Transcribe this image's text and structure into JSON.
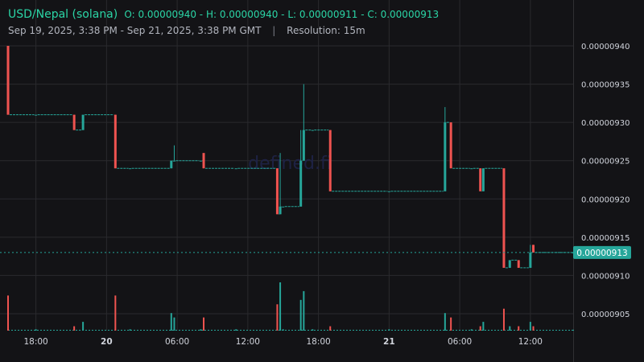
{
  "header": {
    "pair": "USD/Nepal (solana)",
    "ohlc": "O: 0.00000940 - H: 0.00000940 - L: 0.00000911 - C: 0.00000913",
    "range": "Sep 19, 2025, 3:38 PM - Sep 21, 2025, 3:38 PM GMT",
    "separator": "|",
    "resolution": "Resolution: 15m"
  },
  "watermark": "defined.fi",
  "colors": {
    "up": "#26a69a",
    "down": "#ef5350",
    "accent": "#2bd5a6",
    "grid": "#2a2a2e",
    "background": "#131316"
  },
  "chart_data": {
    "type": "candlestick",
    "interval": "15m",
    "ylim": [
      9.02e-06,
      9.42e-06
    ],
    "y_ticks": [
      {
        "value": 9.05e-06,
        "label": "0.00000905"
      },
      {
        "value": 9.1e-06,
        "label": "0.00000910"
      },
      {
        "value": 9.15e-06,
        "label": "0.00000915"
      },
      {
        "value": 9.2e-06,
        "label": "0.00000920"
      },
      {
        "value": 9.25e-06,
        "label": "0.00000925"
      },
      {
        "value": 9.3e-06,
        "label": "0.00000930"
      },
      {
        "value": 9.35e-06,
        "label": "0.00000935"
      },
      {
        "value": 9.4e-06,
        "label": "0.00000940"
      }
    ],
    "x_ticks": [
      {
        "time": "Sep 19 18:00",
        "label": "18:00",
        "bold": false
      },
      {
        "time": "Sep 20 00:00",
        "label": "20",
        "bold": true
      },
      {
        "time": "Sep 20 06:00",
        "label": "06:00",
        "bold": false
      },
      {
        "time": "Sep 20 12:00",
        "label": "12:00",
        "bold": false
      },
      {
        "time": "Sep 20 18:00",
        "label": "18:00",
        "bold": false
      },
      {
        "time": "Sep 21 00:00",
        "label": "21",
        "bold": true
      },
      {
        "time": "Sep 21 06:00",
        "label": "06:00",
        "bold": false
      },
      {
        "time": "Sep 21 12:00",
        "label": "12:00",
        "bold": false
      }
    ],
    "last_price": {
      "value": 9.13e-06,
      "label": "0.00000913"
    },
    "candles": [
      {
        "t": "Sep 19 15:38",
        "o": 9.4e-06,
        "h": 9.4e-06,
        "l": 9.31e-06,
        "c": 9.31e-06,
        "v": 8
      },
      {
        "t": "Sep 19 18:00",
        "o": 9.31e-06,
        "h": 9.31e-06,
        "l": 9.31e-06,
        "c": 9.31e-06,
        "v": 0.3
      },
      {
        "t": "Sep 19 21:15",
        "o": 9.31e-06,
        "h": 9.31e-06,
        "l": 9.29e-06,
        "c": 9.29e-06,
        "v": 1
      },
      {
        "t": "Sep 19 22:00",
        "o": 9.29e-06,
        "h": 9.31e-06,
        "l": 9.29e-06,
        "c": 9.31e-06,
        "v": 2
      },
      {
        "t": "Sep 20 00:45",
        "o": 9.31e-06,
        "h": 9.31e-06,
        "l": 9.24e-06,
        "c": 9.24e-06,
        "v": 8
      },
      {
        "t": "Sep 20 02:00",
        "o": 9.24e-06,
        "h": 9.24e-06,
        "l": 9.24e-06,
        "c": 9.24e-06,
        "v": 0.3
      },
      {
        "t": "Sep 20 05:30",
        "o": 9.24e-06,
        "h": 9.25e-06,
        "l": 9.24e-06,
        "c": 9.25e-06,
        "v": 4
      },
      {
        "t": "Sep 20 05:45",
        "o": 9.25e-06,
        "h": 9.27e-06,
        "l": 9.25e-06,
        "c": 9.25e-06,
        "v": 3
      },
      {
        "t": "Sep 20 08:00",
        "o": 9.25e-06,
        "h": 9.25e-06,
        "l": 9.25e-06,
        "c": 9.25e-06,
        "v": 0.3
      },
      {
        "t": "Sep 20 08:15",
        "o": 9.26e-06,
        "h": 9.26e-06,
        "l": 9.24e-06,
        "c": 9.24e-06,
        "v": 3
      },
      {
        "t": "Sep 20 11:00",
        "o": 9.24e-06,
        "h": 9.24e-06,
        "l": 9.24e-06,
        "c": 9.24e-06,
        "v": 0.3
      },
      {
        "t": "Sep 20 14:30",
        "o": 9.24e-06,
        "h": 9.24e-06,
        "l": 9.18e-06,
        "c": 9.18e-06,
        "v": 6
      },
      {
        "t": "Sep 20 14:45",
        "o": 9.18e-06,
        "h": 9.26e-06,
        "l": 9.18e-06,
        "c": 9.19e-06,
        "v": 11
      },
      {
        "t": "Sep 20 15:00",
        "o": 9.19e-06,
        "h": 9.19e-06,
        "l": 9.19e-06,
        "c": 9.19e-06,
        "v": 0.3
      },
      {
        "t": "Sep 20 16:30",
        "o": 9.19e-06,
        "h": 9.29e-06,
        "l": 9.19e-06,
        "c": 9.25e-06,
        "v": 7
      },
      {
        "t": "Sep 20 16:45",
        "o": 9.25e-06,
        "h": 9.35e-06,
        "l": 9.25e-06,
        "c": 9.29e-06,
        "v": 9
      },
      {
        "t": "Sep 20 17:30",
        "o": 9.29e-06,
        "h": 9.29e-06,
        "l": 9.29e-06,
        "c": 9.29e-06,
        "v": 0.3
      },
      {
        "t": "Sep 20 19:00",
        "o": 9.29e-06,
        "h": 9.29e-06,
        "l": 9.21e-06,
        "c": 9.21e-06,
        "v": 1
      },
      {
        "t": "Sep 21 00:00",
        "o": 9.21e-06,
        "h": 9.21e-06,
        "l": 9.21e-06,
        "c": 9.21e-06,
        "v": 0.3
      },
      {
        "t": "Sep 21 04:45",
        "o": 9.21e-06,
        "h": 9.32e-06,
        "l": 9.21e-06,
        "c": 9.3e-06,
        "v": 4
      },
      {
        "t": "Sep 21 05:15",
        "o": 9.3e-06,
        "h": 9.3e-06,
        "l": 9.24e-06,
        "c": 9.24e-06,
        "v": 3
      },
      {
        "t": "Sep 21 07:00",
        "o": 9.24e-06,
        "h": 9.24e-06,
        "l": 9.24e-06,
        "c": 9.24e-06,
        "v": 0.3
      },
      {
        "t": "Sep 21 07:45",
        "o": 9.24e-06,
        "h": 9.24e-06,
        "l": 9.21e-06,
        "c": 9.21e-06,
        "v": 1
      },
      {
        "t": "Sep 21 08:00",
        "o": 9.21e-06,
        "h": 9.24e-06,
        "l": 9.21e-06,
        "c": 9.24e-06,
        "v": 2
      },
      {
        "t": "Sep 21 09:45",
        "o": 9.24e-06,
        "h": 9.24e-06,
        "l": 9.11e-06,
        "c": 9.11e-06,
        "v": 5
      },
      {
        "t": "Sep 21 10:15",
        "o": 9.11e-06,
        "h": 9.12e-06,
        "l": 9.11e-06,
        "c": 9.12e-06,
        "v": 1
      },
      {
        "t": "Sep 21 11:00",
        "o": 9.12e-06,
        "h": 9.12e-06,
        "l": 9.11e-06,
        "c": 9.11e-06,
        "v": 1
      },
      {
        "t": "Sep 21 12:00",
        "o": 9.11e-06,
        "h": 9.14e-06,
        "l": 9.11e-06,
        "c": 9.13e-06,
        "v": 2
      },
      {
        "t": "Sep 21 12:15",
        "o": 9.14e-06,
        "h": 9.14e-06,
        "l": 9.13e-06,
        "c": 9.13e-06,
        "v": 1
      },
      {
        "t": "Sep 21 15:38",
        "o": 9.13e-06,
        "h": 9.13e-06,
        "l": 9.13e-06,
        "c": 9.13e-06,
        "v": 0.2
      }
    ]
  }
}
